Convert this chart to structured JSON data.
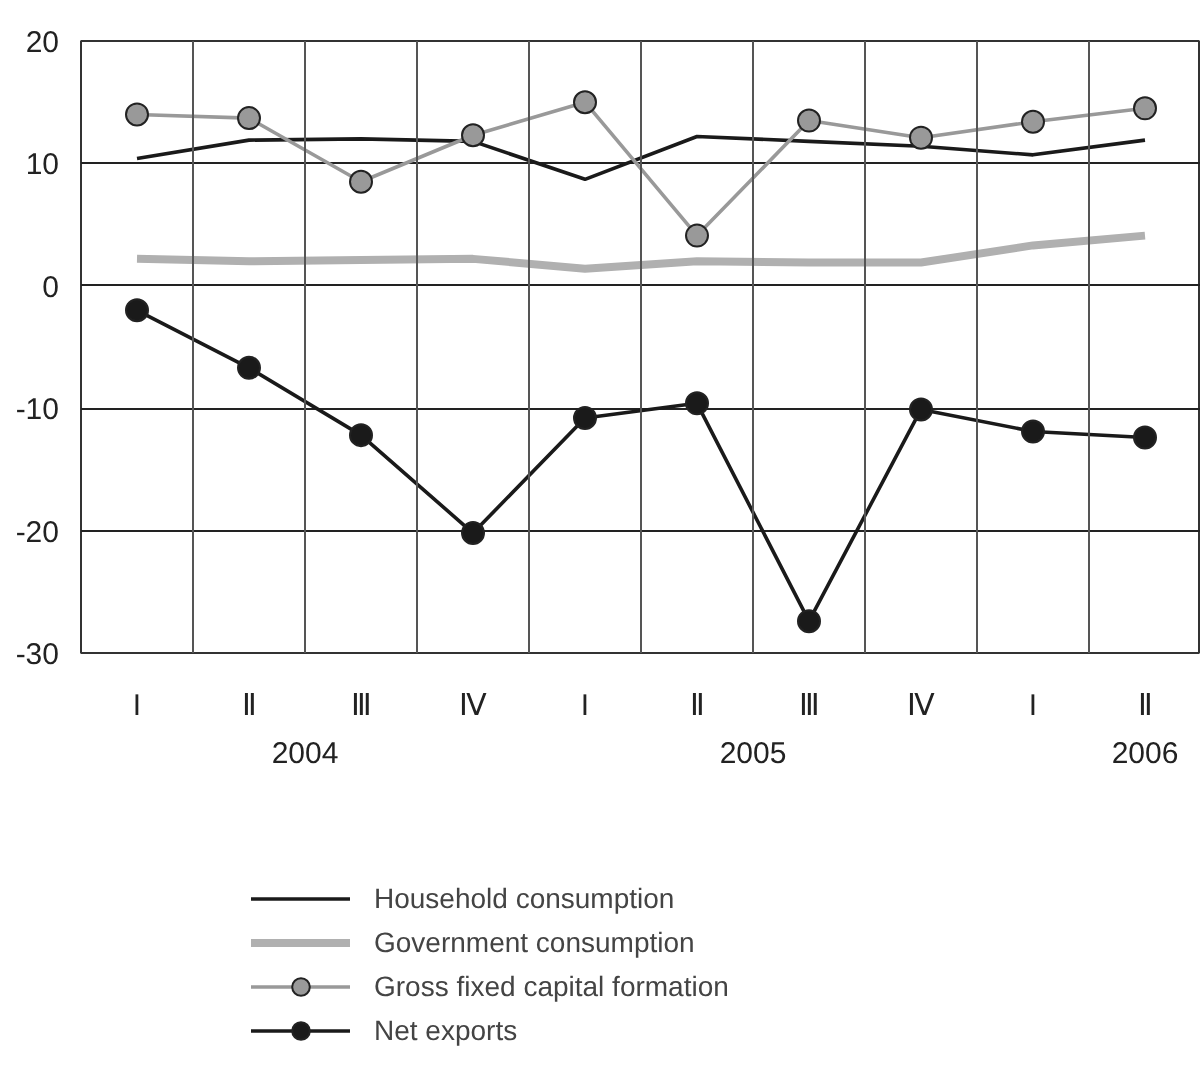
{
  "chart_data": {
    "type": "line",
    "categories": [
      "I",
      "Ⅱ",
      "Ⅲ",
      "Ⅳ",
      "I",
      "Ⅱ",
      "Ⅲ",
      "Ⅳ",
      "I",
      "Ⅱ"
    ],
    "annotations": [
      "2004",
      "2005",
      "2006"
    ],
    "series": [
      {
        "name": "Household consumption",
        "color": "#1a1a1a",
        "marker": "none",
        "values": [
          10.4,
          11.9,
          12.0,
          11.8,
          8.7,
          12.2,
          11.8,
          11.4,
          10.7,
          11.9
        ]
      },
      {
        "name": "Government consumption",
        "color": "#b0b0b0",
        "marker": "none",
        "values": [
          2.2,
          2.0,
          2.1,
          2.2,
          1.4,
          2.0,
          1.9,
          1.9,
          3.3,
          4.1
        ]
      },
      {
        "name": "Gross fixed capital formation",
        "color": "#999999",
        "marker": "circle",
        "values": [
          14.0,
          13.7,
          8.5,
          12.3,
          15.0,
          4.1,
          13.5,
          12.1,
          13.4,
          14.5
        ]
      },
      {
        "name": "Net exports",
        "color": "#1a1a1a",
        "marker": "circle",
        "values": [
          -2.0,
          -6.7,
          -12.2,
          -20.2,
          -10.8,
          -9.6,
          -27.4,
          -10.1,
          -11.9,
          -12.4
        ]
      }
    ],
    "ylim": [
      -30,
      20
    ],
    "yticks": [
      -30,
      -20,
      -10,
      0,
      10,
      20
    ],
    "grid": true,
    "legend": "bottom"
  }
}
